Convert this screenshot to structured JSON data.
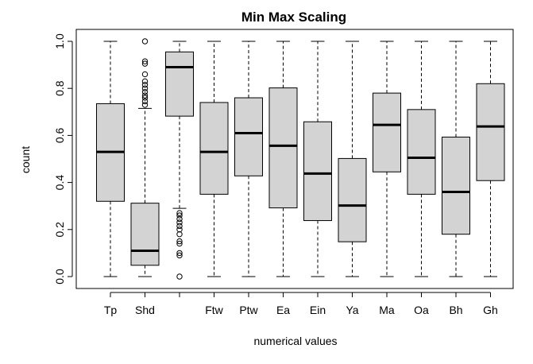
{
  "chart_data": {
    "type": "boxplot",
    "title": "Min Max Scaling",
    "xlabel": "numerical values",
    "ylabel": "count",
    "ylim": [
      0,
      1
    ],
    "yticks": [
      "0.0",
      "0.2",
      "0.4",
      "0.6",
      "0.8",
      "1.0"
    ],
    "boxes": [
      {
        "label": "Tp",
        "min": 0.0,
        "q1": 0.32,
        "median": 0.53,
        "q3": 0.735,
        "max": 1.0,
        "outliers": []
      },
      {
        "label": "Shd",
        "min": 0.0,
        "q1": 0.048,
        "median": 0.11,
        "q3": 0.312,
        "max": 0.715,
        "outliers": [
          0.73,
          0.745,
          0.76,
          0.77,
          0.785,
          0.8,
          0.815,
          0.83,
          0.86,
          0.905,
          0.915,
          1.0
        ]
      },
      {
        "label": "",
        "min": 0.29,
        "q1": 0.682,
        "median": 0.89,
        "q3": 0.955,
        "max": 1.0,
        "outliers": [
          0.0,
          0.09,
          0.1,
          0.14,
          0.15,
          0.18,
          0.2,
          0.215,
          0.23,
          0.245,
          0.26,
          0.27
        ]
      },
      {
        "label": "Ftw",
        "min": 0.0,
        "q1": 0.35,
        "median": 0.53,
        "q3": 0.74,
        "max": 1.0,
        "outliers": []
      },
      {
        "label": "Ptw",
        "min": 0.0,
        "q1": 0.428,
        "median": 0.61,
        "q3": 0.76,
        "max": 1.0,
        "outliers": []
      },
      {
        "label": "Ea",
        "min": 0.0,
        "q1": 0.292,
        "median": 0.556,
        "q3": 0.802,
        "max": 1.0,
        "outliers": []
      },
      {
        "label": "Ein",
        "min": 0.0,
        "q1": 0.238,
        "median": 0.438,
        "q3": 0.658,
        "max": 1.0,
        "outliers": []
      },
      {
        "label": "Ya",
        "min": 0.0,
        "q1": 0.148,
        "median": 0.302,
        "q3": 0.502,
        "max": 1.0,
        "outliers": []
      },
      {
        "label": "Ma",
        "min": 0.0,
        "q1": 0.445,
        "median": 0.645,
        "q3": 0.78,
        "max": 1.0,
        "outliers": []
      },
      {
        "label": "Oa",
        "min": 0.0,
        "q1": 0.35,
        "median": 0.505,
        "q3": 0.71,
        "max": 1.0,
        "outliers": []
      },
      {
        "label": "Bh",
        "min": 0.0,
        "q1": 0.18,
        "median": 0.36,
        "q3": 0.593,
        "max": 1.0,
        "outliers": []
      },
      {
        "label": "Gh",
        "min": 0.0,
        "q1": 0.408,
        "median": 0.638,
        "q3": 0.82,
        "max": 1.0,
        "outliers": []
      }
    ]
  }
}
